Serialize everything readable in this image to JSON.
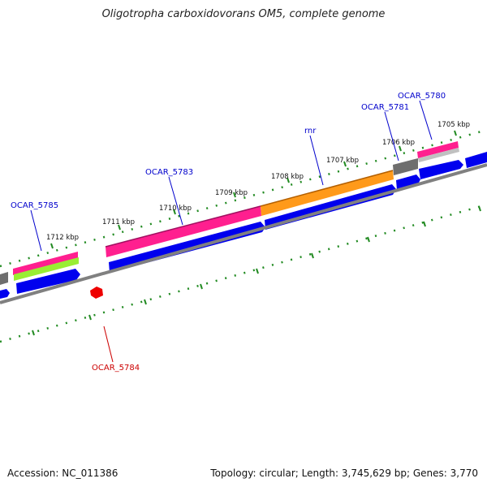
{
  "title": "Oligotropha carboxidovorans OM5, complete genome",
  "footer": {
    "accession": "Accession: NC_011386",
    "summary": "Topology: circular; Length: 3,745,629 bp; Genes: 3,770"
  },
  "scale_labels": [
    "1712 kbp",
    "1711 kbp",
    "1710 kbp",
    "1709 kbp",
    "1708 kbp",
    "1707 kbp",
    "1706 kbp",
    "1705 kbp"
  ],
  "gene_labels": [
    {
      "text": "OCAR_5785",
      "color": "#0000cc"
    },
    {
      "text": "OCAR_5783",
      "color": "#0000cc"
    },
    {
      "text": "rnr",
      "color": "#0000cc"
    },
    {
      "text": "OCAR_5781",
      "color": "#0000cc"
    },
    {
      "text": "OCAR_5780",
      "color": "#0000cc"
    },
    {
      "text": "OCAR_5784",
      "color": "#cc0000"
    }
  ],
  "colors": {
    "cds": "#0000ee",
    "pink": "#ff1f8f",
    "orange": "#ff9a1a",
    "gray": "#6e6e6e",
    "lime": "#99ee33",
    "backbone": "#808080",
    "ticks": "#228b22",
    "red_feature": "#ee0000"
  }
}
